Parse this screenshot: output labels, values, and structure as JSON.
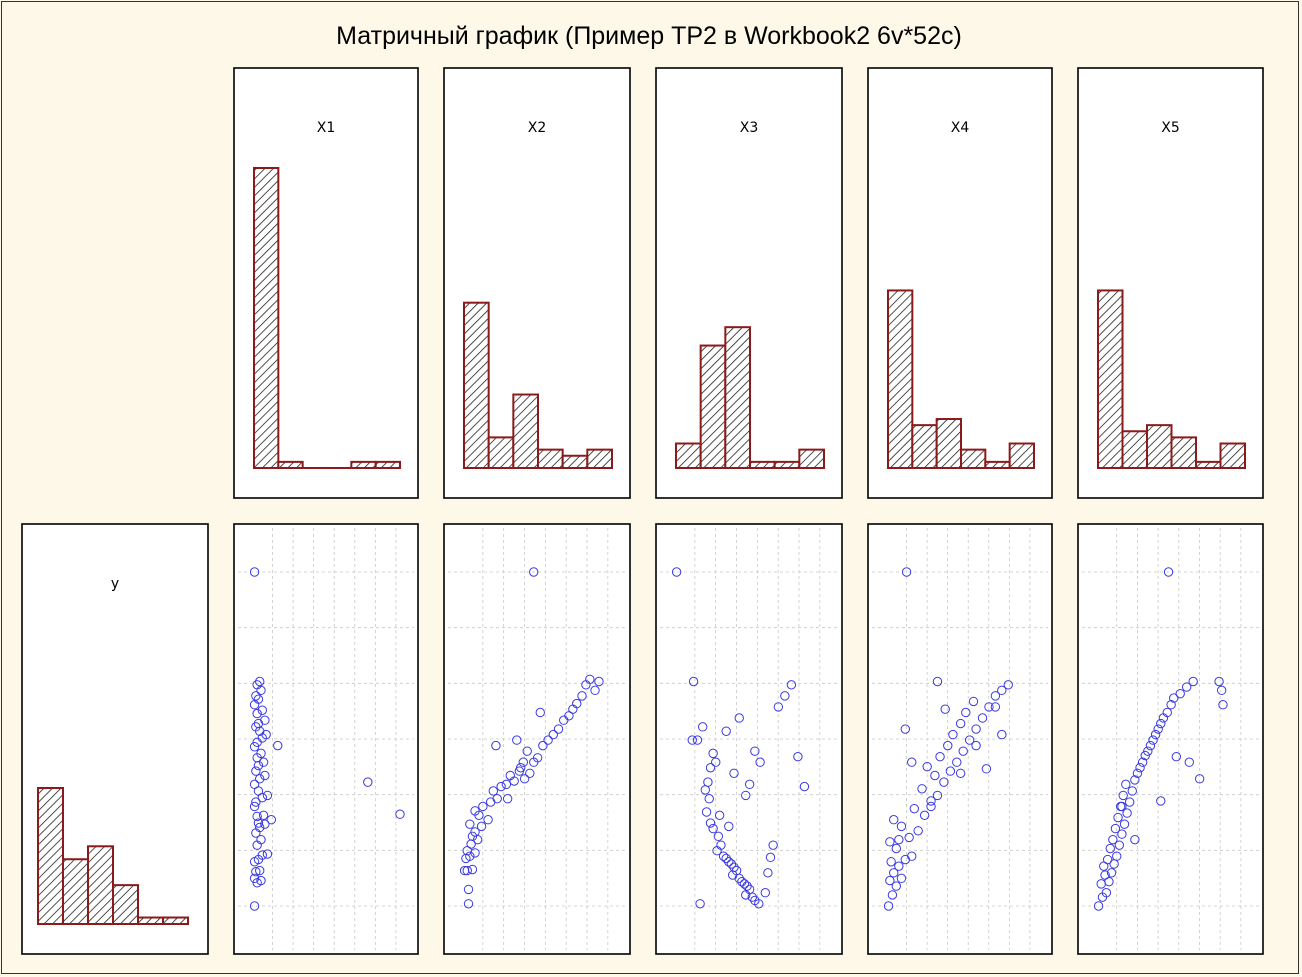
{
  "chart_data": {
    "type": "scatter-matrix",
    "title": "Матричный график (Пример TP2 в Workbook2 6v*52c)",
    "variables": [
      "X1",
      "X2",
      "X3",
      "X4",
      "X5",
      "y"
    ],
    "histograms": {
      "X1": [
        49,
        1,
        0,
        0,
        1,
        1
      ],
      "X2": [
        27,
        5,
        12,
        3,
        2,
        3
      ],
      "X3": [
        4,
        20,
        23,
        1,
        1,
        3
      ],
      "X4": [
        29,
        7,
        8,
        3,
        1,
        4
      ],
      "X5": [
        29,
        6,
        7,
        5,
        1,
        4
      ],
      "y": [
        21,
        10,
        12,
        6,
        1,
        1
      ]
    },
    "colors": {
      "bar_stroke": "#8b1a1a",
      "point": "#3a3ae0",
      "background": "#fdf8e8",
      "grid": "#c8c8c8"
    },
    "scatter_points": {
      "X1": [
        [
          0.02,
          0.0
        ],
        [
          0.04,
          0.21
        ],
        [
          0.07,
          0.23
        ],
        [
          0.02,
          0.25
        ],
        [
          0.03,
          0.31
        ],
        [
          0.06,
          0.32
        ],
        [
          0.02,
          0.4
        ],
        [
          0.05,
          0.42
        ],
        [
          0.08,
          0.46
        ],
        [
          0.12,
          0.47
        ],
        [
          0.04,
          0.55
        ],
        [
          0.07,
          0.6
        ],
        [
          0.03,
          0.66
        ],
        [
          0.06,
          0.71
        ],
        [
          0.1,
          0.74
        ],
        [
          0.15,
          0.78
        ],
        [
          0.05,
          0.75
        ],
        [
          0.04,
          0.81
        ],
        [
          0.09,
          0.82
        ],
        [
          0.02,
          0.9
        ],
        [
          0.03,
          0.94
        ],
        [
          0.08,
          0.98
        ],
        [
          0.12,
          1.0
        ],
        [
          0.05,
          1.04
        ],
        [
          0.02,
          1.1
        ],
        [
          0.06,
          1.15
        ],
        [
          0.1,
          1.18
        ],
        [
          0.03,
          1.22
        ],
        [
          0.05,
          1.27
        ],
        [
          0.09,
          1.3
        ],
        [
          0.04,
          1.34
        ],
        [
          0.07,
          1.38
        ],
        [
          0.02,
          1.44
        ],
        [
          0.04,
          1.48
        ],
        [
          0.08,
          1.52
        ],
        [
          0.11,
          1.55
        ],
        [
          0.06,
          1.58
        ],
        [
          0.03,
          1.62
        ],
        [
          0.05,
          1.65
        ],
        [
          0.1,
          1.68
        ],
        [
          0.04,
          1.74
        ],
        [
          0.08,
          1.77
        ],
        [
          0.02,
          1.82
        ],
        [
          0.05,
          1.87
        ],
        [
          0.03,
          1.9
        ],
        [
          0.07,
          1.95
        ],
        [
          0.04,
          2.0
        ],
        [
          0.06,
          2.03
        ],
        [
          0.9,
          1.12
        ],
        [
          1.15,
          0.83
        ],
        [
          0.02,
          3.02
        ],
        [
          0.2,
          1.45
        ]
      ],
      "X2": [
        [
          0.05,
          0.02
        ],
        [
          0.05,
          0.15
        ],
        [
          0.02,
          0.32
        ],
        [
          0.04,
          0.32
        ],
        [
          0.08,
          0.33
        ],
        [
          0.03,
          0.43
        ],
        [
          0.06,
          0.45
        ],
        [
          0.1,
          0.48
        ],
        [
          0.04,
          0.5
        ],
        [
          0.07,
          0.56
        ],
        [
          0.12,
          0.6
        ],
        [
          0.08,
          0.63
        ],
        [
          0.1,
          0.67
        ],
        [
          0.15,
          0.72
        ],
        [
          0.06,
          0.74
        ],
        [
          0.2,
          0.78
        ],
        [
          0.13,
          0.82
        ],
        [
          0.1,
          0.86
        ],
        [
          0.16,
          0.9
        ],
        [
          0.22,
          0.94
        ],
        [
          0.27,
          0.97
        ],
        [
          0.24,
          1.04
        ],
        [
          0.3,
          1.08
        ],
        [
          0.34,
          1.1
        ],
        [
          0.4,
          1.13
        ],
        [
          0.37,
          1.18
        ],
        [
          0.44,
          1.22
        ],
        [
          0.48,
          1.15
        ],
        [
          0.52,
          1.2
        ],
        [
          0.45,
          1.25
        ],
        [
          0.55,
          1.3
        ],
        [
          0.58,
          1.34
        ],
        [
          0.5,
          1.4
        ],
        [
          0.62,
          1.45
        ],
        [
          0.66,
          1.5
        ],
        [
          0.7,
          1.55
        ],
        [
          0.74,
          1.6
        ],
        [
          0.78,
          1.68
        ],
        [
          0.82,
          1.72
        ],
        [
          0.85,
          1.78
        ],
        [
          0.88,
          1.83
        ],
        [
          0.92,
          1.9
        ],
        [
          0.95,
          2.0
        ],
        [
          0.98,
          2.05
        ],
        [
          1.02,
          1.95
        ],
        [
          0.6,
          1.75
        ],
        [
          0.35,
          0.97
        ],
        [
          0.42,
          1.5
        ],
        [
          0.55,
          3.02
        ],
        [
          1.05,
          2.03
        ],
        [
          0.26,
          1.45
        ],
        [
          0.47,
          1.3
        ]
      ],
      "X3": [
        [
          0.02,
          3.02
        ],
        [
          0.15,
          2.03
        ],
        [
          0.14,
          1.5
        ],
        [
          0.18,
          1.5
        ],
        [
          0.22,
          1.62
        ],
        [
          0.28,
          1.25
        ],
        [
          0.3,
          1.38
        ],
        [
          0.26,
          1.12
        ],
        [
          0.24,
          1.05
        ],
        [
          0.27,
          0.97
        ],
        [
          0.25,
          0.85
        ],
        [
          0.28,
          0.75
        ],
        [
          0.3,
          0.7
        ],
        [
          0.34,
          0.63
        ],
        [
          0.36,
          0.55
        ],
        [
          0.33,
          0.5
        ],
        [
          0.38,
          0.45
        ],
        [
          0.4,
          0.43
        ],
        [
          0.42,
          0.4
        ],
        [
          0.44,
          0.38
        ],
        [
          0.46,
          0.35
        ],
        [
          0.48,
          0.32
        ],
        [
          0.45,
          0.28
        ],
        [
          0.5,
          0.25
        ],
        [
          0.52,
          0.22
        ],
        [
          0.54,
          0.2
        ],
        [
          0.56,
          0.18
        ],
        [
          0.58,
          0.15
        ],
        [
          0.55,
          0.1
        ],
        [
          0.6,
          0.08
        ],
        [
          0.62,
          0.05
        ],
        [
          0.65,
          0.02
        ],
        [
          0.7,
          0.12
        ],
        [
          0.72,
          0.3
        ],
        [
          0.74,
          0.44
        ],
        [
          0.76,
          0.55
        ],
        [
          0.35,
          0.82
        ],
        [
          0.32,
          1.3
        ],
        [
          0.4,
          1.58
        ],
        [
          0.46,
          1.2
        ],
        [
          0.5,
          1.7
        ],
        [
          0.55,
          1.0
        ],
        [
          0.58,
          1.1
        ],
        [
          0.62,
          1.4
        ],
        [
          0.66,
          1.3
        ],
        [
          0.8,
          1.8
        ],
        [
          0.85,
          1.9
        ],
        [
          0.9,
          2.0
        ],
        [
          0.95,
          1.35
        ],
        [
          1.0,
          1.08
        ],
        [
          0.2,
          0.02
        ],
        [
          0.42,
          0.72
        ]
      ],
      "X4": [
        [
          0.02,
          0.0
        ],
        [
          0.05,
          0.1
        ],
        [
          0.08,
          0.18
        ],
        [
          0.03,
          0.23
        ],
        [
          0.12,
          0.25
        ],
        [
          0.06,
          0.3
        ],
        [
          0.1,
          0.36
        ],
        [
          0.04,
          0.4
        ],
        [
          0.15,
          0.42
        ],
        [
          0.2,
          0.45
        ],
        [
          0.08,
          0.52
        ],
        [
          0.03,
          0.58
        ],
        [
          0.18,
          0.62
        ],
        [
          0.25,
          0.68
        ],
        [
          0.12,
          0.72
        ],
        [
          0.06,
          0.78
        ],
        [
          0.3,
          0.82
        ],
        [
          0.22,
          0.88
        ],
        [
          0.35,
          0.95
        ],
        [
          0.4,
          1.0
        ],
        [
          0.28,
          1.06
        ],
        [
          0.45,
          1.12
        ],
        [
          0.38,
          1.18
        ],
        [
          0.5,
          1.22
        ],
        [
          0.32,
          1.26
        ],
        [
          0.55,
          1.3
        ],
        [
          0.42,
          1.35
        ],
        [
          0.6,
          1.4
        ],
        [
          0.48,
          1.45
        ],
        [
          0.65,
          1.5
        ],
        [
          0.52,
          1.55
        ],
        [
          0.7,
          1.6
        ],
        [
          0.58,
          1.65
        ],
        [
          0.75,
          1.7
        ],
        [
          0.62,
          1.75
        ],
        [
          0.8,
          1.8
        ],
        [
          0.68,
          1.85
        ],
        [
          0.85,
          1.9
        ],
        [
          0.9,
          1.95
        ],
        [
          0.95,
          2.0
        ],
        [
          0.16,
          3.02
        ],
        [
          0.4,
          2.03
        ],
        [
          0.46,
          1.78
        ],
        [
          0.58,
          1.2
        ],
        [
          0.7,
          1.45
        ],
        [
          0.78,
          1.24
        ],
        [
          0.85,
          1.8
        ],
        [
          0.9,
          1.55
        ],
        [
          0.2,
          1.3
        ],
        [
          0.35,
          0.9
        ],
        [
          0.15,
          1.6
        ],
        [
          0.1,
          0.6
        ]
      ],
      "X5": [
        [
          0.02,
          0.0
        ],
        [
          0.05,
          0.08
        ],
        [
          0.08,
          0.12
        ],
        [
          0.04,
          0.2
        ],
        [
          0.1,
          0.22
        ],
        [
          0.07,
          0.28
        ],
        [
          0.12,
          0.3
        ],
        [
          0.06,
          0.36
        ],
        [
          0.14,
          0.38
        ],
        [
          0.09,
          0.42
        ],
        [
          0.16,
          0.45
        ],
        [
          0.11,
          0.52
        ],
        [
          0.18,
          0.55
        ],
        [
          0.13,
          0.6
        ],
        [
          0.2,
          0.65
        ],
        [
          0.15,
          0.7
        ],
        [
          0.22,
          0.74
        ],
        [
          0.17,
          0.8
        ],
        [
          0.24,
          0.84
        ],
        [
          0.19,
          0.9
        ],
        [
          0.26,
          0.94
        ],
        [
          0.21,
          1.0
        ],
        [
          0.28,
          1.04
        ],
        [
          0.23,
          1.1
        ],
        [
          0.3,
          1.14
        ],
        [
          0.32,
          1.2
        ],
        [
          0.34,
          1.25
        ],
        [
          0.36,
          1.3
        ],
        [
          0.38,
          1.36
        ],
        [
          0.4,
          1.4
        ],
        [
          0.42,
          1.45
        ],
        [
          0.44,
          1.5
        ],
        [
          0.46,
          1.55
        ],
        [
          0.48,
          1.6
        ],
        [
          0.5,
          1.65
        ],
        [
          0.52,
          1.7
        ],
        [
          0.55,
          1.75
        ],
        [
          0.58,
          1.82
        ],
        [
          0.6,
          1.88
        ],
        [
          0.65,
          1.92
        ],
        [
          0.7,
          1.98
        ],
        [
          0.75,
          2.03
        ],
        [
          0.56,
          3.02
        ],
        [
          0.95,
          2.03
        ],
        [
          0.97,
          1.95
        ],
        [
          0.98,
          1.82
        ],
        [
          0.8,
          1.15
        ],
        [
          0.72,
          1.3
        ],
        [
          0.62,
          1.35
        ],
        [
          0.5,
          0.95
        ],
        [
          0.3,
          0.6
        ],
        [
          0.2,
          0.9
        ]
      ]
    }
  }
}
